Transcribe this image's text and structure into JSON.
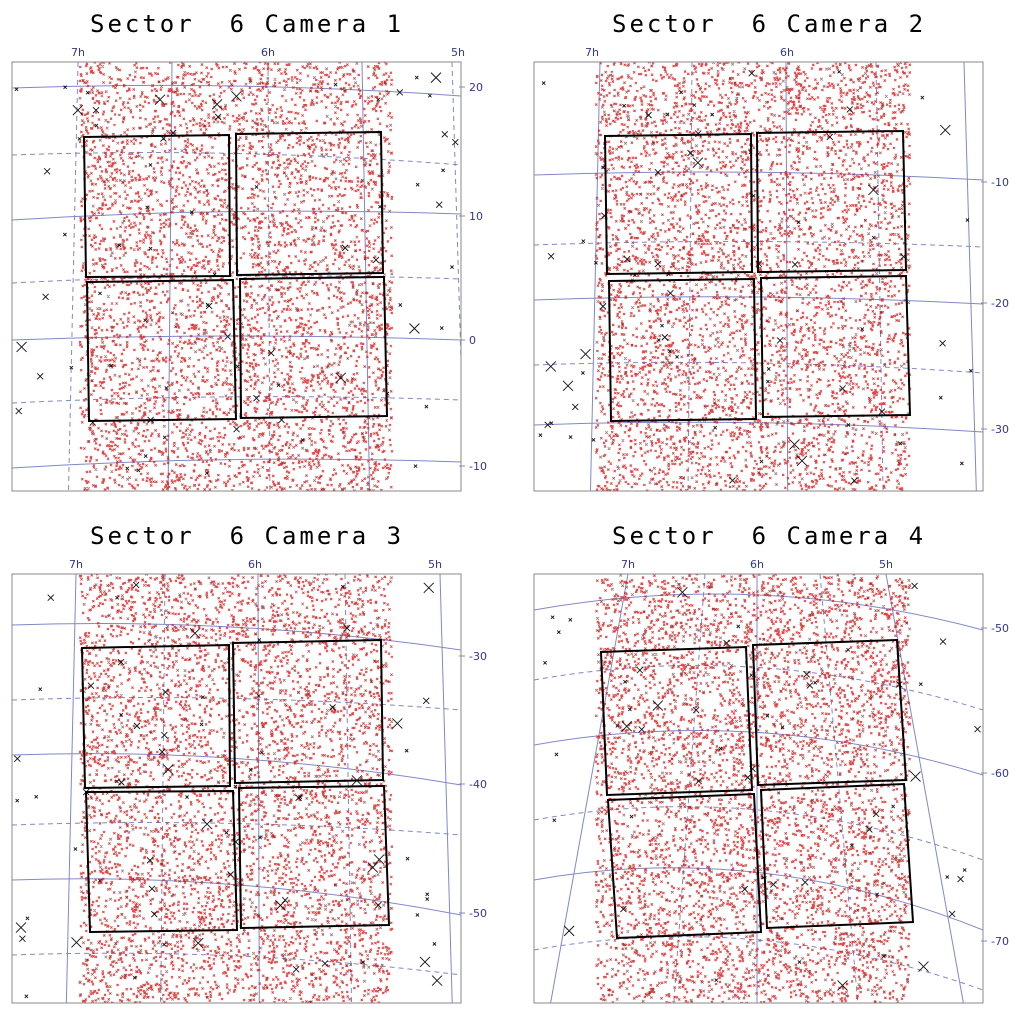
{
  "chart_data": [
    {
      "type": "scatter",
      "title": "Sector  6 Camera 1",
      "ra_tick_labels": [
        "7h",
        "6h",
        "5h"
      ],
      "dec_tick_labels": [
        "20",
        "10",
        "0",
        "-10"
      ],
      "grid": true,
      "ccd_count": 4,
      "series": [
        {
          "name": "",
          "marker": "x",
          "color": "#d62222"
        },
        {
          "name": "",
          "marker": "x",
          "color": "#111111"
        }
      ]
    },
    {
      "type": "scatter",
      "title": "Sector  6 Camera 2",
      "ra_tick_labels": [
        "7h",
        "6h"
      ],
      "dec_tick_labels": [
        "-10",
        "-20",
        "-30"
      ],
      "grid": true,
      "ccd_count": 4,
      "series": [
        {
          "name": "",
          "marker": "x",
          "color": "#d62222"
        },
        {
          "name": "",
          "marker": "x",
          "color": "#111111"
        }
      ]
    },
    {
      "type": "scatter",
      "title": "Sector  6 Camera 3",
      "ra_tick_labels": [
        "7h",
        "6h",
        "5h"
      ],
      "dec_tick_labels": [
        "-30",
        "-40",
        "-50"
      ],
      "grid": true,
      "ccd_count": 4,
      "series": [
        {
          "name": "",
          "marker": "x",
          "color": "#d62222"
        },
        {
          "name": "",
          "marker": "x",
          "color": "#111111"
        }
      ]
    },
    {
      "type": "scatter",
      "title": "Sector  6 Camera 4",
      "ra_tick_labels": [
        "7h",
        "6h",
        "5h"
      ],
      "dec_tick_labels": [
        "-50",
        "-60",
        "-70"
      ],
      "grid": true,
      "ccd_count": 4,
      "series": [
        {
          "name": "",
          "marker": "x",
          "color": "#d62222"
        },
        {
          "name": "",
          "marker": "x",
          "color": "#111111"
        }
      ]
    }
  ],
  "colors": {
    "grid": "#8088c8",
    "ccd_outline": "#000000",
    "frame": "#888888",
    "axis_label": "#33368f"
  }
}
